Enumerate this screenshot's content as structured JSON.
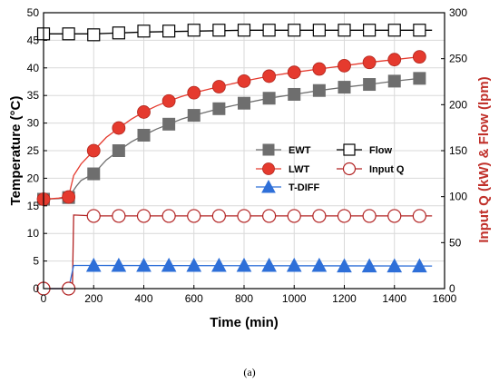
{
  "caption": "(a)",
  "chart_data": {
    "type": "line",
    "xlabel": "Time (min)",
    "ylabel_left": "Temperature (°C)",
    "ylabel_right": "Input Q (kW) & Flow (lpm)",
    "xlim": [
      0,
      1600
    ],
    "ylim_left": [
      0,
      50
    ],
    "ylim_right": [
      0,
      300
    ],
    "x_ticks": [
      0,
      200,
      400,
      600,
      800,
      1000,
      1200,
      1400,
      1600
    ],
    "y_left_ticks": [
      0,
      5,
      10,
      15,
      20,
      25,
      30,
      35,
      40,
      45,
      50
    ],
    "y_right_ticks": [
      0,
      50,
      100,
      150,
      200,
      250,
      300
    ],
    "grid": true,
    "legend": [
      "EWT",
      "LWT",
      "T-DIFF",
      "Flow",
      "Input Q"
    ],
    "colors": {
      "EWT": "#6e6e6e",
      "LWT": "#e53a2e",
      "T-DIFF": "#2e6fd8",
      "Flow": "#000000",
      "Input Q": "#b22222",
      "right_axis": "#c0302a"
    },
    "series": [
      {
        "name": "EWT",
        "axis": "left",
        "marker": "filled-square",
        "line": [
          [
            0,
            16.2
          ],
          [
            60,
            16.3
          ],
          [
            100,
            16.5
          ],
          [
            130,
            18.5
          ],
          [
            150,
            19.6
          ],
          [
            200,
            20.8
          ],
          [
            250,
            23.3
          ],
          [
            300,
            25.0
          ],
          [
            350,
            26.6
          ],
          [
            400,
            27.8
          ],
          [
            450,
            28.9
          ],
          [
            500,
            29.8
          ],
          [
            550,
            30.7
          ],
          [
            600,
            31.4
          ],
          [
            700,
            32.6
          ],
          [
            800,
            33.6
          ],
          [
            900,
            34.5
          ],
          [
            1000,
            35.2
          ],
          [
            1100,
            35.9
          ],
          [
            1200,
            36.5
          ],
          [
            1300,
            37.0
          ],
          [
            1400,
            37.6
          ],
          [
            1500,
            38.1
          ]
        ],
        "markers": [
          [
            0,
            16.2
          ],
          [
            100,
            16.5
          ],
          [
            200,
            20.8
          ],
          [
            300,
            25.0
          ],
          [
            400,
            27.8
          ],
          [
            500,
            29.8
          ],
          [
            600,
            31.4
          ],
          [
            700,
            32.6
          ],
          [
            800,
            33.6
          ],
          [
            900,
            34.5
          ],
          [
            1000,
            35.2
          ],
          [
            1100,
            35.9
          ],
          [
            1200,
            36.5
          ],
          [
            1300,
            37.0
          ],
          [
            1400,
            37.6
          ],
          [
            1500,
            38.1
          ]
        ]
      },
      {
        "name": "LWT",
        "axis": "left",
        "marker": "filled-circle",
        "line": [
          [
            0,
            16.2
          ],
          [
            60,
            16.4
          ],
          [
            100,
            16.7
          ],
          [
            120,
            20.5
          ],
          [
            150,
            22.6
          ],
          [
            200,
            25.0
          ],
          [
            250,
            27.4
          ],
          [
            300,
            29.1
          ],
          [
            350,
            30.7
          ],
          [
            400,
            32.0
          ],
          [
            450,
            33.1
          ],
          [
            500,
            34.0
          ],
          [
            550,
            34.8
          ],
          [
            600,
            35.5
          ],
          [
            700,
            36.6
          ],
          [
            800,
            37.6
          ],
          [
            900,
            38.5
          ],
          [
            1000,
            39.2
          ],
          [
            1100,
            39.8
          ],
          [
            1200,
            40.4
          ],
          [
            1300,
            41.0
          ],
          [
            1400,
            41.5
          ],
          [
            1500,
            42.0
          ]
        ],
        "markers": [
          [
            0,
            16.2
          ],
          [
            100,
            16.6
          ],
          [
            200,
            25.0
          ],
          [
            300,
            29.1
          ],
          [
            400,
            32.0
          ],
          [
            500,
            34.0
          ],
          [
            600,
            35.5
          ],
          [
            700,
            36.6
          ],
          [
            800,
            37.6
          ],
          [
            900,
            38.5
          ],
          [
            1000,
            39.2
          ],
          [
            1100,
            39.8
          ],
          [
            1200,
            40.4
          ],
          [
            1300,
            41.0
          ],
          [
            1400,
            41.5
          ],
          [
            1500,
            42.0
          ]
        ]
      },
      {
        "name": "T-DIFF",
        "axis": "left",
        "marker": "filled-triangle",
        "line": [
          [
            0,
            0
          ],
          [
            100,
            0
          ],
          [
            120,
            4.2
          ],
          [
            200,
            4.2
          ],
          [
            1550,
            4.1
          ]
        ],
        "markers": [
          [
            200,
            4.2
          ],
          [
            300,
            4.2
          ],
          [
            400,
            4.2
          ],
          [
            500,
            4.2
          ],
          [
            600,
            4.2
          ],
          [
            700,
            4.2
          ],
          [
            800,
            4.2
          ],
          [
            900,
            4.2
          ],
          [
            1000,
            4.2
          ],
          [
            1100,
            4.2
          ],
          [
            1200,
            4.1
          ],
          [
            1300,
            4.1
          ],
          [
            1400,
            4.1
          ],
          [
            1500,
            4.1
          ]
        ]
      },
      {
        "name": "Flow",
        "axis": "right",
        "marker": "open-square",
        "line": [
          [
            0,
            277
          ],
          [
            200,
            277
          ],
          [
            400,
            279
          ],
          [
            600,
            280
          ],
          [
            800,
            281
          ],
          [
            1000,
            281
          ],
          [
            1200,
            281
          ],
          [
            1400,
            281
          ],
          [
            1550,
            281
          ]
        ],
        "markers": [
          [
            0,
            277
          ],
          [
            100,
            277
          ],
          [
            200,
            276
          ],
          [
            300,
            278
          ],
          [
            400,
            280
          ],
          [
            500,
            280
          ],
          [
            600,
            281
          ],
          [
            700,
            281
          ],
          [
            800,
            281
          ],
          [
            900,
            281
          ],
          [
            1000,
            281
          ],
          [
            1100,
            281
          ],
          [
            1200,
            281
          ],
          [
            1300,
            281
          ],
          [
            1400,
            281
          ],
          [
            1500,
            281
          ]
        ]
      },
      {
        "name": "Input Q",
        "axis": "right",
        "marker": "open-circle",
        "line": [
          [
            0,
            0
          ],
          [
            100,
            0
          ],
          [
            115,
            0
          ],
          [
            120,
            80
          ],
          [
            200,
            79
          ],
          [
            1550,
            79
          ]
        ],
        "markers": [
          [
            0,
            0
          ],
          [
            100,
            0
          ],
          [
            200,
            79
          ],
          [
            300,
            79
          ],
          [
            400,
            79
          ],
          [
            500,
            79
          ],
          [
            600,
            79
          ],
          [
            700,
            79
          ],
          [
            800,
            79
          ],
          [
            900,
            79
          ],
          [
            1000,
            79
          ],
          [
            1100,
            79
          ],
          [
            1200,
            79
          ],
          [
            1300,
            79
          ],
          [
            1400,
            79
          ],
          [
            1500,
            79
          ]
        ]
      }
    ]
  }
}
